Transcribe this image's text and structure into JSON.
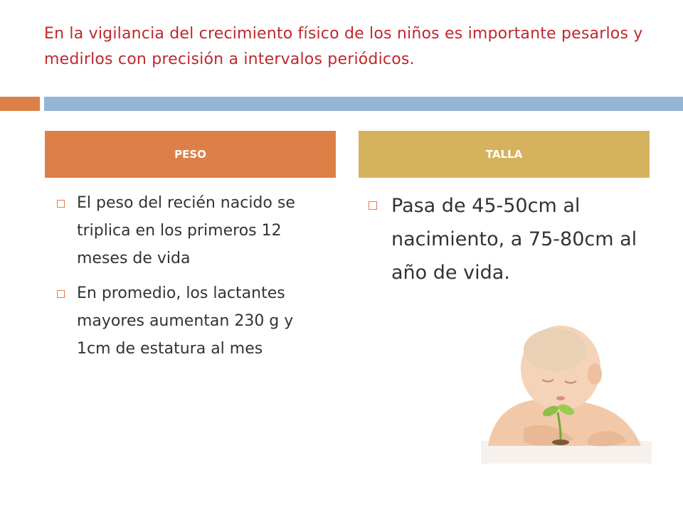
{
  "slide": {
    "title": "En la vigilancia del crecimiento físico de los niños es importante pesarlos y medirlos con precisión a intervalos periódicos."
  },
  "columns": {
    "peso": {
      "header": "PESO",
      "items": [
        "El peso del recién nacido se triplica en los primeros 12 meses de vida",
        "En promedio, los lactantes mayores aumentan 230 g y 1cm de estatura al mes"
      ]
    },
    "talla": {
      "header": "TALLA",
      "items": [
        "Pasa de 45-50cm al nacimiento, a 75-80cm al año de vida."
      ]
    }
  },
  "colors": {
    "title": "#c0272d",
    "accent_orange": "#dd8047",
    "accent_blue": "#94b6d2",
    "accent_gold": "#d6b25e"
  },
  "image": {
    "icon": "baby-with-sprout-photo"
  }
}
